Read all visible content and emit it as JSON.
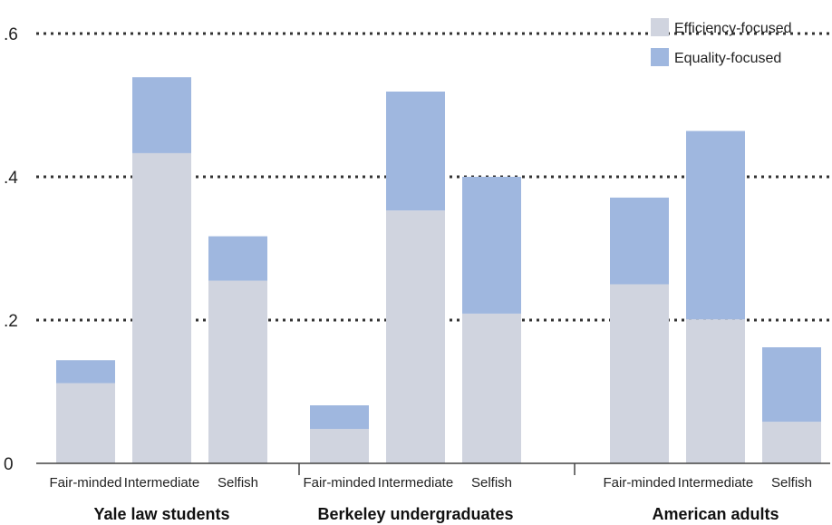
{
  "chart_data": {
    "type": "bar",
    "stacked": true,
    "ylim": [
      0,
      0.6
    ],
    "y_ticks": [
      {
        "value": 0,
        "label": "0"
      },
      {
        "value": 0.2,
        "label": ".2"
      },
      {
        "value": 0.4,
        "label": ".4"
      },
      {
        "value": 0.6,
        "label": ".6"
      }
    ],
    "grid": "dotted lines at .2, .4 and .6",
    "legend_position": "top-right",
    "colors": {
      "Efficiency-focused": "#d0d4df",
      "Equality-focused": "#9fb7df"
    },
    "series": [
      {
        "name": "Efficiency-focused"
      },
      {
        "name": "Equality-focused"
      }
    ],
    "groups": [
      {
        "name": "Yale law students",
        "categories": [
          "Fair-minded",
          "Intermediate",
          "Selfish"
        ],
        "efficiency": [
          0.112,
          0.433,
          0.255
        ],
        "equality": [
          0.032,
          0.106,
          0.062
        ]
      },
      {
        "name": "Berkeley undergraduates",
        "categories": [
          "Fair-minded",
          "Intermediate",
          "Selfish"
        ],
        "efficiency": [
          0.048,
          0.353,
          0.209
        ],
        "equality": [
          0.033,
          0.166,
          0.191
        ]
      },
      {
        "name": "American adults",
        "categories": [
          "Fair-minded",
          "Intermediate",
          "Selfish"
        ],
        "efficiency": [
          0.25,
          0.201,
          0.058
        ],
        "equality": [
          0.121,
          0.263,
          0.104
        ]
      }
    ]
  }
}
